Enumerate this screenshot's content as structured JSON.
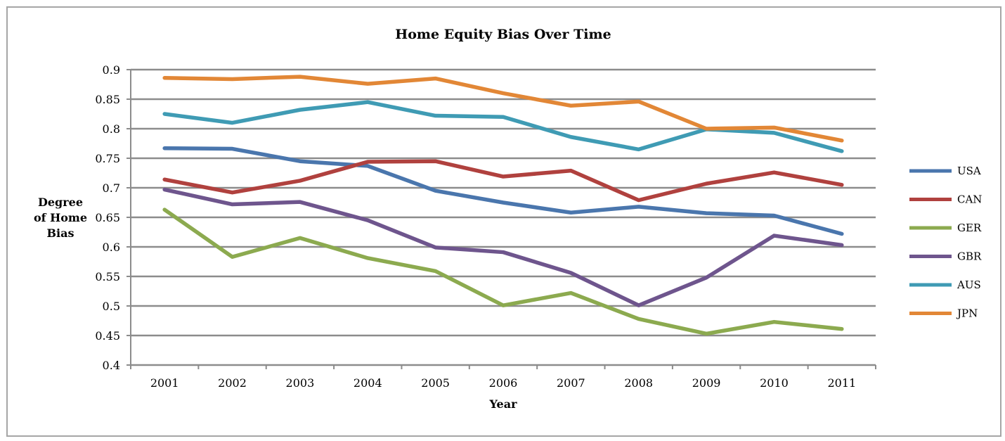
{
  "chart_data": {
    "type": "line",
    "title": "Home Equity Bias Over Time",
    "xlabel": "Year",
    "ylabel": [
      "Degree",
      "of Home",
      "Bias"
    ],
    "categories": [
      "2001",
      "2002",
      "2003",
      "2004",
      "2005",
      "2006",
      "2007",
      "2008",
      "2009",
      "2010",
      "2011"
    ],
    "ylim": [
      0.4,
      0.9
    ],
    "yticks": [
      "0.4",
      "0.45",
      "0.5",
      "0.55",
      "0.6",
      "0.65",
      "0.7",
      "0.75",
      "0.8",
      "0.85",
      "0.9"
    ],
    "grid": true,
    "legend_position": "right",
    "series": [
      {
        "name": "USA",
        "color": "#4a76ad",
        "values": [
          0.767,
          0.766,
          0.745,
          0.737,
          0.695,
          0.675,
          0.658,
          0.668,
          0.657,
          0.653,
          0.622
        ]
      },
      {
        "name": "CAN",
        "color": "#b0413e",
        "values": [
          0.714,
          0.692,
          0.712,
          0.744,
          0.745,
          0.719,
          0.729,
          0.679,
          0.707,
          0.726,
          0.705
        ]
      },
      {
        "name": "GER",
        "color": "#8caa4f",
        "values": [
          0.663,
          0.583,
          0.615,
          0.581,
          0.559,
          0.501,
          0.522,
          0.478,
          0.453,
          0.473,
          0.461
        ]
      },
      {
        "name": "GBR",
        "color": "#6e558d",
        "values": [
          0.697,
          0.672,
          0.676,
          0.645,
          0.599,
          0.591,
          0.556,
          0.501,
          0.548,
          0.619,
          0.603
        ]
      },
      {
        "name": "AUS",
        "color": "#3f9bb4",
        "values": [
          0.825,
          0.81,
          0.832,
          0.845,
          0.822,
          0.82,
          0.786,
          0.765,
          0.799,
          0.793,
          0.762
        ]
      },
      {
        "name": "JPN",
        "color": "#e28736",
        "values": [
          0.886,
          0.884,
          0.888,
          0.876,
          0.885,
          0.86,
          0.839,
          0.846,
          0.8,
          0.802,
          0.78
        ]
      }
    ]
  }
}
